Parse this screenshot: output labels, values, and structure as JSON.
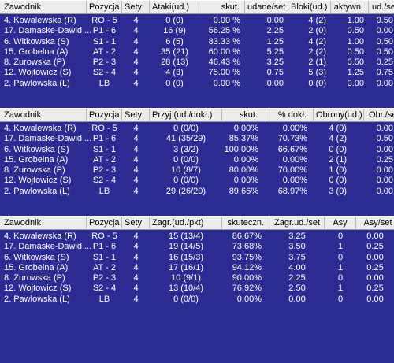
{
  "table1": {
    "headers": [
      "Zawodnik",
      "Pozycja",
      "Sety",
      "Ataki(ud.)",
      "skut.",
      "udane/set",
      "Bloki(ud.)",
      "aktywn.",
      "ud./set"
    ],
    "rows": [
      [
        "4. Kowalewska (R)",
        "RO - 5",
        "4",
        "0 (0)",
        "0.00 %",
        "0.00",
        "4 (2)",
        "1.00",
        "0.50"
      ],
      [
        "17. Damaske-Dawid ...",
        "P1 - 6",
        "4",
        "16 (9)",
        "56.25 %",
        "2.25",
        "2 (0)",
        "0.50",
        "0.00"
      ],
      [
        "6. Witkowska (S)",
        "S1 - 1",
        "4",
        "6 (5)",
        "83.33 %",
        "1.25",
        "4 (2)",
        "1.00",
        "0.50"
      ],
      [
        "15. Grobelna (A)",
        "AT - 2",
        "4",
        "35 (21)",
        "60.00 %",
        "5.25",
        "2 (2)",
        "0.50",
        "0.50"
      ],
      [
        "8. Zurowska (P)",
        "P2 - 3",
        "4",
        "28 (13)",
        "46.43 %",
        "3.25",
        "2 (1)",
        "0.50",
        "0.25"
      ],
      [
        "12. Wojtowicz (S)",
        "S2 - 4",
        "4",
        "4 (3)",
        "75.00 %",
        "0.75",
        "5 (3)",
        "1.25",
        "0.75"
      ],
      [
        "2. Pawlowska (L)",
        "LB",
        "4",
        "0 (0)",
        "0.00 %",
        "0.00",
        "0 (0)",
        "0.00",
        "0.00"
      ]
    ]
  },
  "table2": {
    "headers": [
      "Zawodnik",
      "Pozycja",
      "Sety",
      "Przyj.(ud./dokł.)",
      "skut.",
      "% dokł.",
      "Obrony(ud.)",
      "Obr./set"
    ],
    "rows": [
      [
        "4. Kowalewska (R)",
        "RO - 5",
        "4",
        "0 (0/0)",
        "0.00%",
        "0.00%",
        "4 (0)",
        "0.00"
      ],
      [
        "17. Damaske-Dawid ...",
        "P1 - 6",
        "4",
        "41 (35/29)",
        "85.37%",
        "70.73%",
        "4 (2)",
        "0.50"
      ],
      [
        "6. Witkowska (S)",
        "S1 - 1",
        "4",
        "3 (3/2)",
        "100.00%",
        "66.67%",
        "0 (0)",
        "0.00"
      ],
      [
        "15. Grobelna (A)",
        "AT - 2",
        "4",
        "0 (0/0)",
        "0.00%",
        "0.00%",
        "2 (1)",
        "0.25"
      ],
      [
        "8. Zurowska (P)",
        "P2 - 3",
        "4",
        "10 (8/7)",
        "80.00%",
        "70.00%",
        "1 (0)",
        "0.00"
      ],
      [
        "12. Wojtowicz (S)",
        "S2 - 4",
        "4",
        "0 (0/0)",
        "0.00%",
        "0.00%",
        "0 (0)",
        "0.00"
      ],
      [
        "2. Pawlowska (L)",
        "LB",
        "4",
        "29 (26/20)",
        "89.66%",
        "68.97%",
        "3 (0)",
        "0.00"
      ]
    ]
  },
  "table3": {
    "headers": [
      "Zawodnik",
      "Pozycja",
      "Sety",
      "Zagr.(ud./pkt)",
      "skuteczn.",
      "Zagr.ud./set",
      "Asy",
      "Asy/set"
    ],
    "rows": [
      [
        "4. Kowalewska (R)",
        "RO - 5",
        "4",
        "15 (13/4)",
        "86.67%",
        "3.25",
        "0",
        "0.00"
      ],
      [
        "17. Damaske-Dawid ...",
        "P1 - 6",
        "4",
        "19 (14/5)",
        "73.68%",
        "3.50",
        "1",
        "0.25"
      ],
      [
        "6. Witkowska (S)",
        "S1 - 1",
        "4",
        "16 (15/3)",
        "93.75%",
        "3.75",
        "0",
        "0.00"
      ],
      [
        "15. Grobelna (A)",
        "AT - 2",
        "4",
        "17 (16/1)",
        "94.12%",
        "4.00",
        "1",
        "0.25"
      ],
      [
        "8. Zurowska (P)",
        "P2 - 3",
        "4",
        "10 (9/1)",
        "90.00%",
        "2.25",
        "0",
        "0.00"
      ],
      [
        "12. Wojtowicz (S)",
        "S2 - 4",
        "4",
        "13 (10/4)",
        "76.92%",
        "2.50",
        "1",
        "0.25"
      ],
      [
        "2. Pawlowska (L)",
        "LB",
        "4",
        "0 (0/0)",
        "0.00%",
        "0.00",
        "0",
        "0.00"
      ]
    ]
  },
  "colors": {
    "background": "#2b2b91",
    "header_bg": "#ececec",
    "text": "#ffffff"
  }
}
